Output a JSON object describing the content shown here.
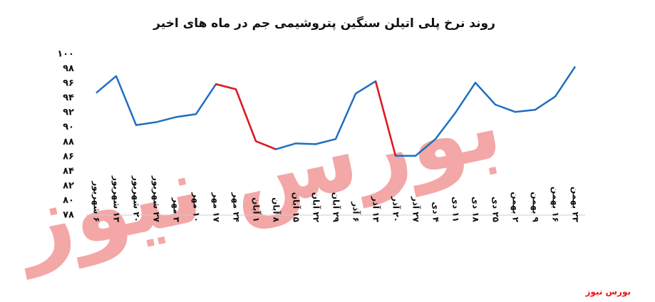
{
  "chart_data": {
    "type": "line",
    "title": "روند نرخ پلی اتیلن سنگین پتروشیمی جم در ماه های اخیر",
    "watermark": "بورس نیوز",
    "source": "بورس نیوز",
    "categories": [
      "۶ شهریور",
      "۱۳ شهریور",
      "۲۰ شهریور",
      "۲۷ شهریور",
      "۳ مهر",
      "۱۰ مهر",
      "۱۷ مهر",
      "۲۴ مهر",
      "۱ آبان",
      "۸ آبان",
      "۱۵ آبان",
      "۲۲ آبان",
      "۲۹ آبان",
      "۶ آذر",
      "۱۳ آذر",
      "۲۰ آذر",
      "۲۷ آذر",
      "۴ دی",
      "۱۱ دی",
      "۱۸ دی",
      "۲۵ دی",
      "۲ بهمن",
      "۹ بهمن",
      "۱۶ بهمن",
      "۲۳ بهمن"
    ],
    "series": [
      {
        "color": "#1f6fbf",
        "values": [
          94.7,
          97,
          90.3,
          90.7,
          91.4,
          91.8,
          95.9,
          95.2,
          88.1,
          87,
          87.8,
          87.7,
          88.4,
          94.6,
          96.3,
          86.1,
          86.1,
          88.4,
          92,
          96.1,
          93.1,
          92.1,
          92.4,
          94.2,
          98.3
        ]
      },
      {
        "color": "#e8191c",
        "values": [
          null,
          null,
          null,
          null,
          null,
          null,
          95.9,
          95.2,
          88.1,
          87,
          null,
          null,
          null,
          null,
          96.3,
          86.1,
          null,
          null,
          null,
          null,
          null,
          null,
          null,
          null,
          null
        ]
      }
    ],
    "ylim": [
      78,
      100
    ],
    "yticks": [
      {
        "value": 78,
        "label": "۷۸"
      },
      {
        "value": 80,
        "label": "۸۰"
      },
      {
        "value": 82,
        "label": "۸۲"
      },
      {
        "value": 84,
        "label": "۸۴"
      },
      {
        "value": 86,
        "label": "۸۶"
      },
      {
        "value": 88,
        "label": "۸۸"
      },
      {
        "value": 90,
        "label": "۹۰"
      },
      {
        "value": 92,
        "label": "۹۲"
      },
      {
        "value": 94,
        "label": "۹۴"
      },
      {
        "value": 96,
        "label": "۹۶"
      },
      {
        "value": 98,
        "label": "۹۸"
      },
      {
        "value": 100,
        "label": "۱۰۰"
      }
    ],
    "grid": false
  }
}
